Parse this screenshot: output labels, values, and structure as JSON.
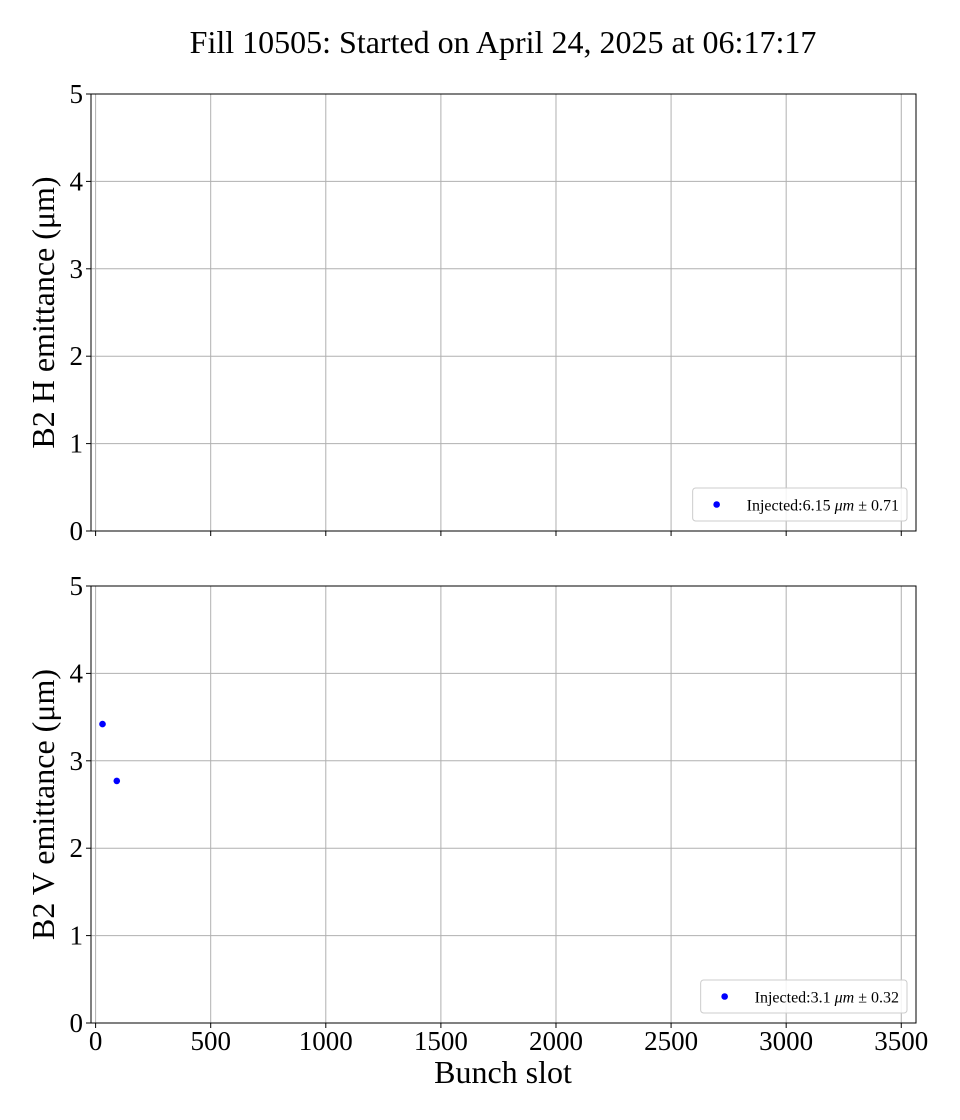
{
  "chart_data": {
    "title": "Fill 10505: Started on April 24, 2025 at 06:17:17",
    "type": "scatter",
    "xlabel": "Bunch slot",
    "xlim": [
      -20,
      3564
    ],
    "x_ticks": [
      0,
      500,
      1000,
      1500,
      2000,
      2500,
      3000,
      3500
    ],
    "x_tick_labels": [
      "0",
      "500",
      "1000",
      "1500",
      "2000",
      "2500",
      "3000",
      "3500"
    ],
    "grid": true,
    "panels": [
      {
        "ylabel": "B2 H emittance (μm)",
        "ylim": [
          0,
          5
        ],
        "y_ticks": [
          0,
          1,
          2,
          3,
          4,
          5
        ],
        "y_tick_labels": [
          "0",
          "1",
          "2",
          "3",
          "4",
          "5"
        ],
        "show_x_tick_labels": false,
        "legend_position": "lower right",
        "series": [
          {
            "legend_prefix": "Injected:6.15 ",
            "legend_unit": "μm",
            "legend_suffix": " ± 0.71",
            "color": "#0000ff",
            "points": []
          }
        ]
      },
      {
        "ylabel": "B2 V emittance (μm)",
        "ylim": [
          0,
          5
        ],
        "y_ticks": [
          0,
          1,
          2,
          3,
          4,
          5
        ],
        "y_tick_labels": [
          "0",
          "1",
          "2",
          "3",
          "4",
          "5"
        ],
        "show_x_tick_labels": true,
        "legend_position": "lower right",
        "series": [
          {
            "legend_prefix": "Injected:3.1 ",
            "legend_unit": "μm",
            "legend_suffix": " ± 0.32",
            "color": "#0000ff",
            "points": [
              {
                "x": 30,
                "y": 3.42
              },
              {
                "x": 92,
                "y": 2.77
              }
            ]
          }
        ]
      }
    ]
  }
}
